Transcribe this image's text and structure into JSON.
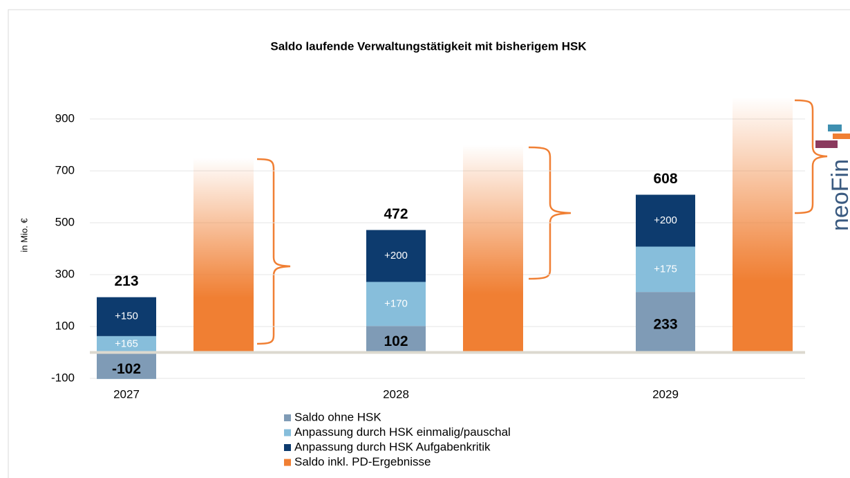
{
  "chart_data": {
    "type": "stacked_bar",
    "title": "Saldo laufende Verwaltungstätigkeit mit bisherigem HSK",
    "y_label": "in Mio. €",
    "logo": "neoFin",
    "categories": [
      "2027",
      "2028",
      "2029"
    ],
    "series": [
      {
        "name": "Saldo ohne HSK",
        "color": "#7f9bb6",
        "values": [
          -102,
          102,
          233
        ]
      },
      {
        "name": "Anpassung durch HSK einmalig/pauschal",
        "color": "#87bedb",
        "values": [
          165,
          170,
          175
        ],
        "value_labels": [
          "+165",
          "+170",
          "+175"
        ]
      },
      {
        "name": "Anpassung durch HSK Aufgabenkritik",
        "color": "#0d3b6e",
        "values": [
          150,
          200,
          200
        ],
        "value_labels": [
          "+150",
          "+200",
          "+200"
        ]
      }
    ],
    "totals": [
      213,
      472,
      608
    ],
    "extra_series": {
      "name": "Saldo inkl. PD-Ergebnisse",
      "color": "#f07f33",
      "values": [
        750,
        800,
        985
      ]
    },
    "ylim": [
      -100,
      1000
    ],
    "yticks": [
      -100,
      100,
      300,
      500,
      700,
      900
    ],
    "grid": true
  }
}
